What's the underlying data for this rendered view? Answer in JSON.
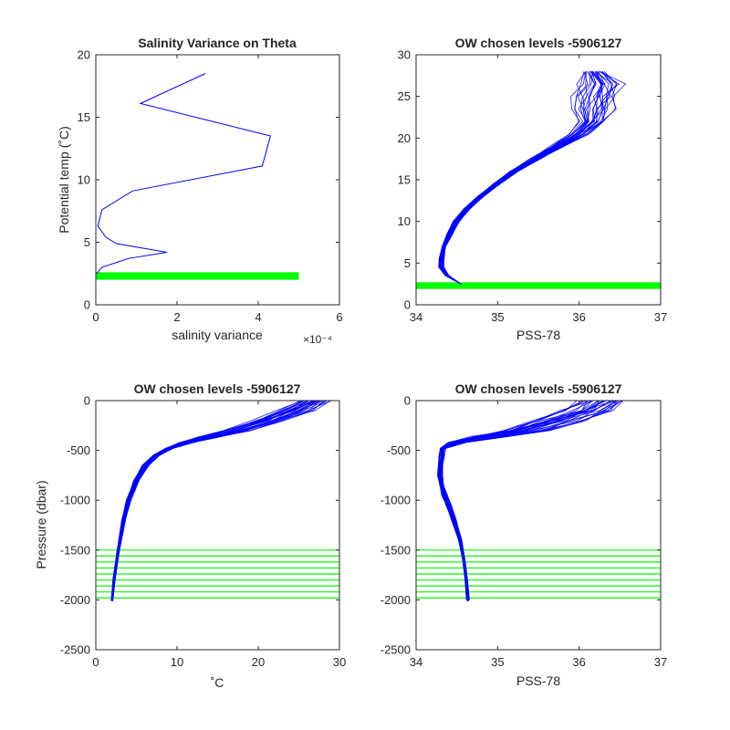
{
  "chart_data": [
    {
      "id": "salvar",
      "type": "line",
      "title": "Salinity Variance on Theta",
      "xlabel": "salinity variance",
      "ylabel": "Potential temp (˚C)",
      "x_exponent": "×10⁻⁴",
      "xlim": [
        0,
        6
      ],
      "ylim": [
        0,
        20
      ],
      "xticks": [
        0,
        2,
        4,
        6
      ],
      "yticks": [
        0,
        5,
        10,
        15,
        20
      ],
      "line_color": "#0000ff",
      "highlight_color": "#00ff00",
      "series": [
        {
          "x": [
            2.7,
            1.1,
            4.3,
            4.1,
            0.9,
            0.15,
            0.05,
            0.25,
            0.5,
            1.75,
            0.8,
            0.15,
            0.02
          ],
          "y": [
            18.5,
            16.1,
            13.5,
            11.1,
            9.1,
            7.6,
            6.3,
            5.4,
            4.9,
            4.2,
            3.7,
            3.0,
            2.5
          ]
        }
      ],
      "highlight_bands": [
        {
          "x0": 0,
          "x1": 5,
          "y": 2.3,
          "thickness_data": 0.6
        }
      ]
    },
    {
      "id": "ts",
      "type": "line",
      "title": "OW chosen levels -5906127",
      "xlabel": "PSS-78",
      "ylabel": "",
      "xlim": [
        34,
        37
      ],
      "ylim": [
        0,
        30
      ],
      "xticks": [
        34,
        35,
        36,
        37
      ],
      "yticks": [
        0,
        5,
        10,
        15,
        20,
        25,
        30
      ],
      "line_color": "#0000ff",
      "highlight_color": "#00ff00",
      "profile_envelope": {
        "y": [
          2.5,
          3.5,
          4.5,
          5.5,
          7,
          8.5,
          10,
          11.5,
          13,
          14.5,
          16,
          17.5,
          19,
          20.5,
          22,
          23.5,
          25,
          26.5,
          28
        ],
        "x_left": [
          34.55,
          34.36,
          34.28,
          34.28,
          34.32,
          34.38,
          34.46,
          34.58,
          34.75,
          34.95,
          35.15,
          35.4,
          35.65,
          35.9,
          36.0,
          35.95,
          35.95,
          36.0,
          36.05
        ],
        "x_right": [
          34.55,
          34.4,
          34.34,
          34.34,
          34.36,
          34.44,
          34.53,
          34.66,
          34.83,
          35.03,
          35.25,
          35.52,
          35.82,
          36.1,
          36.3,
          36.4,
          36.45,
          36.52,
          36.3
        ]
      },
      "highlight_bands": [
        {
          "x0": 34,
          "x1": 37,
          "y": 2.3,
          "thickness_data": 0.8
        }
      ]
    },
    {
      "id": "ptemp",
      "type": "line",
      "title": "OW chosen levels -5906127",
      "xlabel": "˚C",
      "ylabel": "Pressure (dbar)",
      "xlim": [
        0,
        30
      ],
      "ylim": [
        -2500,
        0
      ],
      "xticks": [
        0,
        10,
        20,
        30
      ],
      "yticks": [
        -2500,
        -2000,
        -1500,
        -1000,
        -500,
        0
      ],
      "line_color": "#0000ff",
      "highlight_color": "#00ff00",
      "profile_envelope": {
        "y": [
          -2000,
          -1800,
          -1500,
          -1200,
          -1000,
          -800,
          -650,
          -550,
          -480,
          -420,
          -370,
          -300,
          -200,
          -100,
          0
        ],
        "x_left": [
          1.9,
          2.1,
          2.6,
          3.2,
          3.8,
          4.7,
          5.8,
          7.0,
          8.5,
          10.5,
          12.5,
          16.0,
          19.5,
          22.5,
          25.5
        ],
        "x_right": [
          2.1,
          2.4,
          2.9,
          3.6,
          4.3,
          5.3,
          6.5,
          7.8,
          9.5,
          12.0,
          15.0,
          19.0,
          23.0,
          26.5,
          28.5
        ]
      },
      "highlight_lines_y": [
        -1500,
        -1560,
        -1620,
        -1680,
        -1740,
        -1800,
        -1860,
        -1920,
        -1980
      ],
      "highlight_x_range": [
        0,
        30
      ]
    },
    {
      "id": "psal",
      "type": "line",
      "title": "OW chosen levels -5906127",
      "xlabel": "PSS-78",
      "ylabel": "",
      "xlim": [
        34,
        37
      ],
      "ylim": [
        -2500,
        0
      ],
      "xticks": [
        34,
        35,
        36,
        37
      ],
      "yticks": [
        -2500,
        -2000,
        -1500,
        -1000,
        -500,
        0
      ],
      "line_color": "#0000ff",
      "highlight_color": "#00ff00",
      "profile_envelope": {
        "y": [
          -2000,
          -1800,
          -1600,
          -1400,
          -1200,
          -1050,
          -950,
          -850,
          -750,
          -650,
          -550,
          -480,
          -420,
          -360,
          -300,
          -200,
          -100,
          0
        ],
        "x_left": [
          34.62,
          34.6,
          34.57,
          34.52,
          34.44,
          34.37,
          34.32,
          34.29,
          34.27,
          34.27,
          34.28,
          34.3,
          34.4,
          34.7,
          35.05,
          35.45,
          35.8,
          36.05
        ],
        "x_right": [
          34.65,
          34.63,
          34.6,
          34.56,
          34.49,
          34.43,
          34.38,
          34.34,
          34.32,
          34.32,
          34.34,
          34.36,
          34.6,
          35.1,
          35.6,
          36.05,
          36.4,
          36.55
        ]
      },
      "highlight_lines_y": [
        -1500,
        -1560,
        -1620,
        -1680,
        -1740,
        -1800,
        -1860,
        -1920,
        -1980
      ],
      "highlight_x_range": [
        34,
        37
      ]
    }
  ]
}
